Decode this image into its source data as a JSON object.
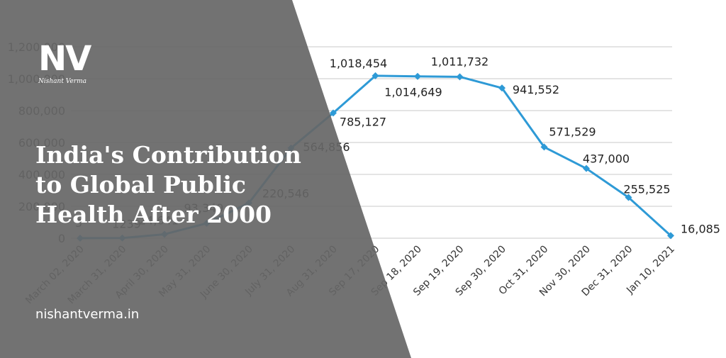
{
  "overlay": {
    "title_lines": [
      "India's Contribution",
      "to Global Public",
      "Health After 2000"
    ],
    "website": "nishantverma.in",
    "logo_mark": "NV",
    "logo_name": "Nishant Verma",
    "panel_color": "#666666"
  },
  "chart_data": {
    "type": "line",
    "title": "",
    "xlabel": "",
    "ylabel": "",
    "ylim": [
      0,
      1200000
    ],
    "yticks": [
      0,
      200000,
      400000,
      600000,
      800000,
      1000000,
      1200000
    ],
    "ytick_labels": [
      "0",
      "200,000",
      "400,000",
      "600,000",
      "800,000",
      "1,000,000",
      "1,200,000"
    ],
    "grid": true,
    "line_color": "#2e9ad6",
    "categories": [
      "March 02, 2020",
      "March 31, 2020",
      "April 30, 2020",
      "May 31, 2020",
      "June 30, 2020",
      "July 31, 2020",
      "Aug 31, 2020",
      "Sep 17, 2020",
      "Sep 18, 2020",
      "Sep 19, 2020",
      "Sep 30, 2020",
      "Oct 31, 2020",
      "Nov 30, 2020",
      "Dec 31, 2020",
      "Jan 10, 2021"
    ],
    "values": [
      3,
      1239,
      24641,
      93349,
      220546,
      564856,
      785127,
      1018454,
      1014649,
      1011732,
      941552,
      571529,
      437000,
      255525,
      16085
    ],
    "data_labels": [
      "3",
      "1239",
      "24,641",
      "93,349",
      "220,546",
      "564,856",
      "785,127",
      "1,018,454",
      "1,014,649",
      "1,011,732",
      "941,552",
      "571,529",
      "437,000",
      "255,525",
      "16,085"
    ]
  }
}
